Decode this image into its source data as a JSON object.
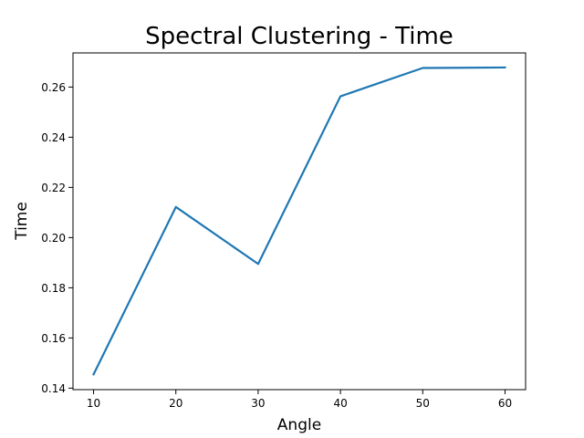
{
  "chart_data": {
    "type": "line",
    "title": "Spectral Clustering - Time",
    "xlabel": "Angle",
    "ylabel": "Time",
    "x": [
      10,
      20,
      30,
      40,
      50,
      60
    ],
    "series": [
      {
        "values": [
          0.1455,
          0.2122,
          0.1895,
          0.2563,
          0.2676,
          0.2678
        ]
      }
    ],
    "xlim": [
      7.5,
      62.5
    ],
    "ylim": [
      0.1394,
      0.2736
    ],
    "xticks": [
      10,
      20,
      30,
      40,
      50,
      60
    ],
    "yticks": [
      0.14,
      0.16,
      0.18,
      0.2,
      0.22,
      0.24,
      0.26
    ],
    "xtick_labels": [
      "10",
      "20",
      "30",
      "40",
      "50",
      "60"
    ],
    "ytick_labels": [
      "0.14",
      "0.16",
      "0.18",
      "0.20",
      "0.22",
      "0.24",
      "0.26"
    ],
    "grid": false,
    "colors": {
      "series": "#1f77b4"
    }
  }
}
